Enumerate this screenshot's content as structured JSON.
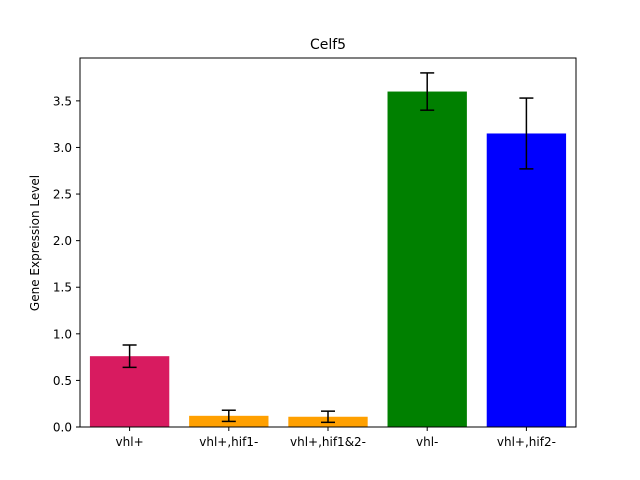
{
  "chart_data": {
    "type": "bar",
    "title": "Celf5",
    "xlabel": "",
    "ylabel": "Gene Expression Level",
    "categories": [
      "vhl+",
      "vhl+,hif1-",
      "vhl+,hif1&2-",
      "vhl-",
      "vhl+,hif2-"
    ],
    "values": [
      0.76,
      0.12,
      0.11,
      3.6,
      3.15
    ],
    "errors": [
      0.12,
      0.06,
      0.06,
      0.2,
      0.38
    ],
    "colors": [
      "#d81b60",
      "#ffa000",
      "#ffa000",
      "#008000",
      "#0000ff"
    ],
    "ylim": [
      0,
      3.96
    ],
    "yticks": [
      0.0,
      0.5,
      1.0,
      1.5,
      2.0,
      2.5,
      3.0,
      3.5
    ],
    "ytick_labels": [
      "0.0",
      "0.5",
      "1.0",
      "1.5",
      "2.0",
      "2.5",
      "3.0",
      "3.5"
    ],
    "grid": false
  }
}
